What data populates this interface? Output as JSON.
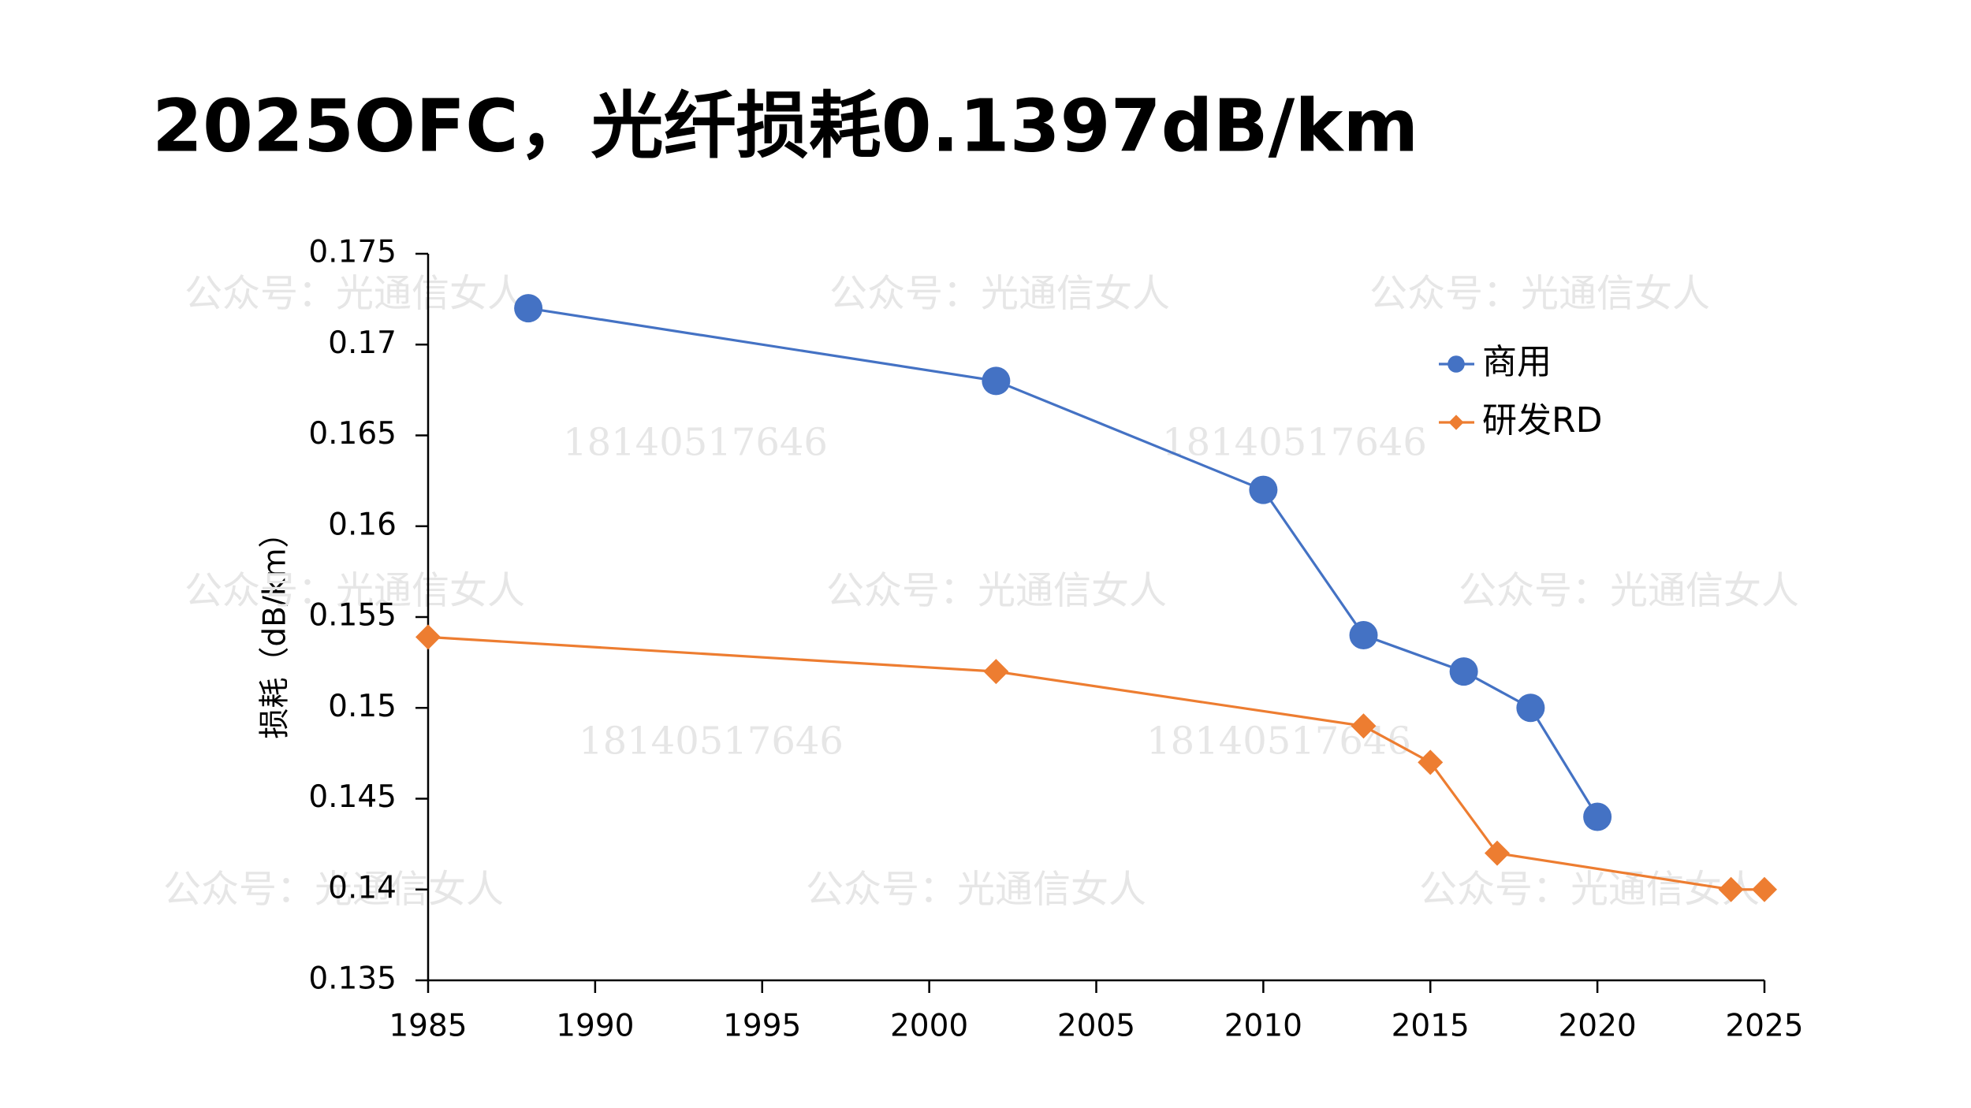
{
  "chart_data": {
    "type": "line",
    "title": "2025OFC，光纤损耗0.1397dB/km",
    "ylabel": "损耗（dB/km）",
    "xlim": [
      1985,
      2025
    ],
    "xticks": [
      1985,
      1990,
      1995,
      2000,
      2005,
      2010,
      2015,
      2020,
      2025
    ],
    "ylim": [
      0.135,
      0.175
    ],
    "yticks": [
      0.135,
      0.14,
      0.145,
      0.15,
      0.155,
      0.16,
      0.165,
      0.17,
      0.175
    ],
    "grid": false,
    "legend": "upper right",
    "watermarks": [
      "公众号：光通信女人",
      "18140517646"
    ],
    "series": [
      {
        "name": "商用",
        "color": "#4472c4",
        "marker": "circle",
        "x": [
          1988,
          2002,
          2010,
          2013,
          2016,
          2018,
          2020
        ],
        "values": [
          0.172,
          0.168,
          0.162,
          0.154,
          0.152,
          0.15,
          0.144
        ]
      },
      {
        "name": "研发RD",
        "color": "#ed7d31",
        "marker": "diamond",
        "x": [
          1985,
          2002,
          2013,
          2015,
          2017,
          2024,
          2025
        ],
        "values": [
          0.1539,
          0.152,
          0.149,
          0.147,
          0.142,
          0.14,
          0.14
        ]
      }
    ]
  }
}
